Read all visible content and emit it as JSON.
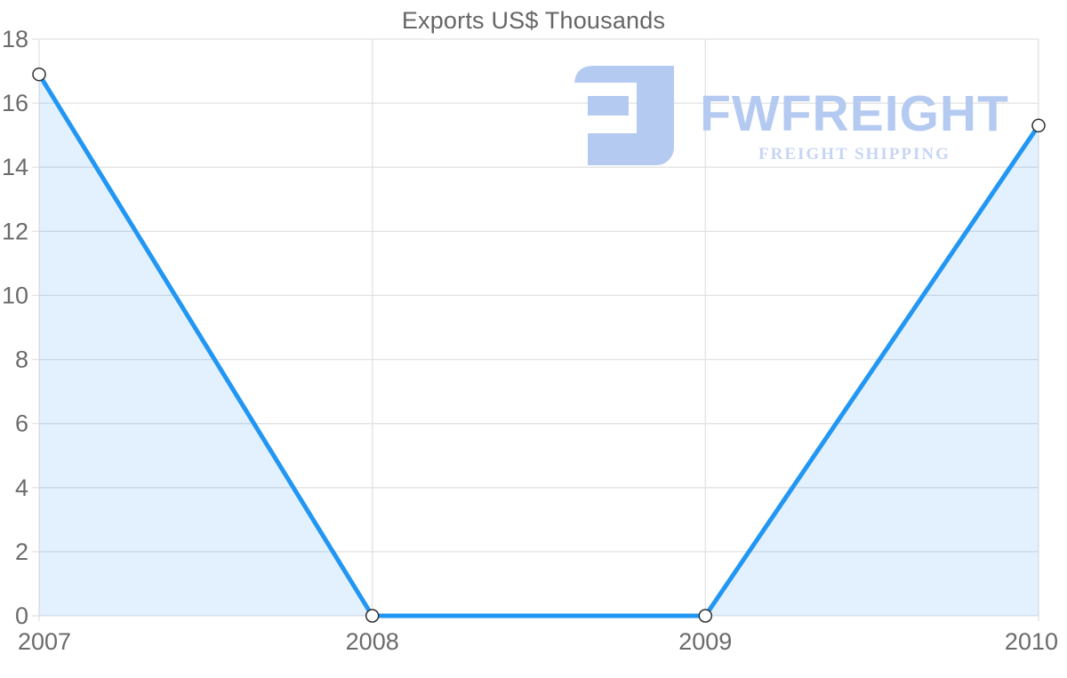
{
  "chart_data": {
    "type": "area",
    "title": "Exports US$ Thousands",
    "categories": [
      "2007",
      "2008",
      "2009",
      "2010"
    ],
    "values": [
      16.9,
      0,
      0,
      15.3
    ],
    "xlabel": "",
    "ylabel": "",
    "ylim": [
      0,
      18
    ],
    "ytick_step": 2,
    "grid": true,
    "legend": "none",
    "colors": {
      "line": "#2196f3",
      "fill": "rgba(33,150,243,0.13)",
      "marker_fill": "#ffffff",
      "marker_stroke": "#2e2e2e",
      "grid": "#e2e2e2",
      "tick_text": "#6b6b6b",
      "title_text": "#666666"
    }
  },
  "watermark": {
    "brand": "FWFREIGHT",
    "tagline": "FREIGHT SHIPPING",
    "brand_color": "#b5caf1",
    "tagline_color": "#c6d5f4",
    "icon": "fwfreight-logo-icon"
  }
}
